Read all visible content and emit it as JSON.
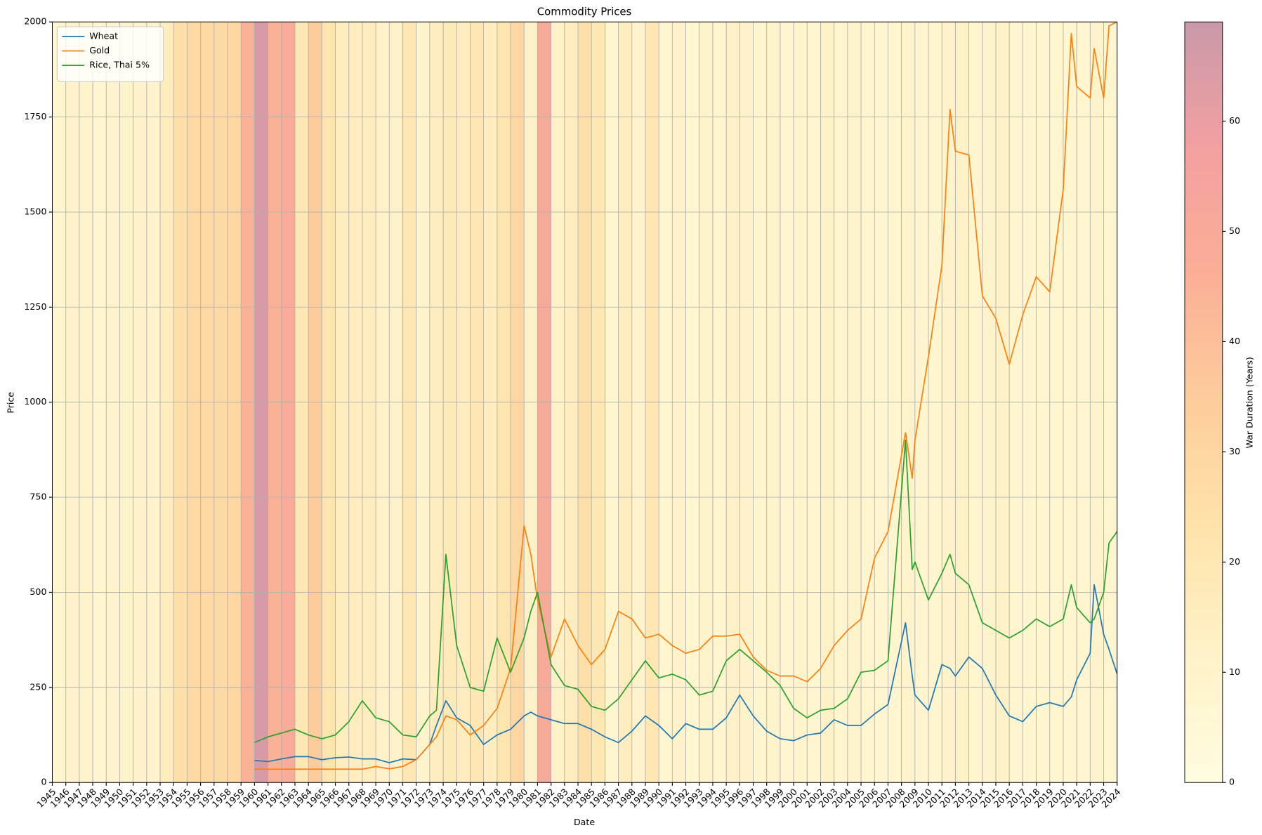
{
  "chart_data": {
    "type": "line",
    "title": "Commodity Prices",
    "xlabel": "Date",
    "ylabel": "Price",
    "xlim": [
      1945,
      2024
    ],
    "ylim": [
      0,
      2000
    ],
    "xticks": [
      1945,
      1946,
      1947,
      1948,
      1949,
      1950,
      1951,
      1952,
      1953,
      1954,
      1955,
      1956,
      1957,
      1958,
      1959,
      1960,
      1961,
      1962,
      1963,
      1964,
      1965,
      1966,
      1967,
      1968,
      1969,
      1970,
      1971,
      1972,
      1973,
      1974,
      1975,
      1976,
      1977,
      1978,
      1979,
      1980,
      1981,
      1982,
      1983,
      1984,
      1985,
      1986,
      1987,
      1988,
      1989,
      1990,
      1991,
      1992,
      1993,
      1994,
      1995,
      1996,
      1997,
      1998,
      1999,
      2000,
      2001,
      2002,
      2003,
      2004,
      2005,
      2006,
      2007,
      2008,
      2009,
      2010,
      2011,
      2012,
      2013,
      2014,
      2015,
      2016,
      2017,
      2018,
      2019,
      2020,
      2021,
      2022,
      2023,
      2024
    ],
    "yticks": [
      0,
      250,
      500,
      750,
      1000,
      1250,
      1500,
      1750,
      2000
    ],
    "grid": true,
    "legend": "upper left",
    "x": [
      1960,
      1961,
      1962,
      1963,
      1964,
      1965,
      1966,
      1967,
      1968,
      1969,
      1970,
      1971,
      1972,
      1973,
      1973.5,
      1974.2,
      1975,
      1976,
      1977,
      1978,
      1979,
      1980,
      1980.5,
      1981,
      1982,
      1983,
      1984,
      1985,
      1986,
      1987,
      1988,
      1989,
      1990,
      1991,
      1992,
      1993,
      1994,
      1995,
      1996,
      1997,
      1998,
      1999,
      2000,
      2001,
      2002,
      2003,
      2004,
      2005,
      2006,
      2007,
      2008.3,
      2008.8,
      2009,
      2010,
      2011,
      2011.6,
      2012,
      2013,
      2014,
      2015,
      2016,
      2017,
      2018,
      2019,
      2020,
      2020.6,
      2021,
      2022,
      2022.3,
      2023,
      2023.4,
      2024
    ],
    "series": [
      {
        "name": "Wheat",
        "color": "#1f77b4",
        "values": [
          58,
          55,
          62,
          68,
          68,
          60,
          65,
          67,
          62,
          62,
          52,
          62,
          60,
          100,
          150,
          215,
          170,
          150,
          100,
          125,
          140,
          175,
          185,
          175,
          165,
          155,
          155,
          140,
          120,
          105,
          135,
          175,
          150,
          115,
          155,
          140,
          140,
          170,
          230,
          175,
          135,
          115,
          110,
          125,
          130,
          165,
          150,
          150,
          180,
          205,
          420,
          280,
          230,
          190,
          310,
          300,
          280,
          330,
          300,
          230,
          175,
          160,
          200,
          210,
          200,
          225,
          270,
          340,
          520,
          390,
          350,
          285
        ]
      },
      {
        "name": "Gold",
        "color": "#ff7f0e",
        "values": [
          35,
          35,
          35,
          35,
          35,
          35,
          35,
          35,
          35,
          42,
          36,
          42,
          60,
          100,
          120,
          175,
          165,
          125,
          150,
          195,
          300,
          675,
          600,
          480,
          330,
          430,
          360,
          310,
          350,
          450,
          430,
          380,
          390,
          360,
          340,
          350,
          385,
          385,
          390,
          330,
          295,
          280,
          280,
          265,
          300,
          360,
          400,
          430,
          590,
          660,
          920,
          800,
          900,
          1120,
          1360,
          1770,
          1660,
          1650,
          1280,
          1220,
          1100,
          1230,
          1330,
          1290,
          1560,
          1970,
          1830,
          1800,
          1930,
          1800,
          1990,
          2000
        ]
      },
      {
        "name": "Rice, Thai 5%",
        "color": "#2ca02c",
        "values": [
          105,
          120,
          130,
          140,
          125,
          115,
          125,
          160,
          215,
          170,
          160,
          125,
          120,
          175,
          190,
          600,
          360,
          250,
          240,
          380,
          290,
          380,
          450,
          500,
          310,
          255,
          245,
          200,
          190,
          220,
          270,
          320,
          275,
          285,
          270,
          230,
          240,
          320,
          350,
          320,
          290,
          255,
          195,
          170,
          190,
          195,
          220,
          290,
          295,
          320,
          900,
          560,
          580,
          480,
          550,
          600,
          550,
          520,
          420,
          400,
          380,
          400,
          430,
          410,
          430,
          520,
          460,
          420,
          430,
          500,
          630,
          660
        ]
      }
    ],
    "colorbar": {
      "label": "War Duration (Years)",
      "lim": [
        0,
        69
      ],
      "ticks": [
        0,
        10,
        20,
        30,
        40,
        50,
        60
      ],
      "colors": [
        "#fffce0",
        "#fff2c8",
        "#fee3aa",
        "#fdcd9c",
        "#faaf96",
        "#f3a0a0",
        "#c999a9"
      ],
      "band_values": [
        8,
        10,
        10,
        8,
        10,
        10,
        10,
        10,
        15,
        25,
        28,
        28,
        28,
        30,
        45,
        65,
        45,
        48,
        20,
        35,
        22,
        15,
        15,
        15,
        12,
        12,
        20,
        10,
        15,
        18,
        15,
        20,
        15,
        22,
        30,
        12,
        50,
        12,
        15,
        25,
        20,
        8,
        15,
        10,
        20,
        8,
        10,
        8,
        10,
        8,
        12,
        10,
        8,
        10,
        8,
        10,
        8,
        12,
        8,
        10,
        8,
        8,
        8,
        10,
        8,
        8,
        10,
        12,
        8,
        10,
        12,
        8,
        8,
        8,
        8,
        8,
        8,
        10,
        8
      ]
    }
  }
}
